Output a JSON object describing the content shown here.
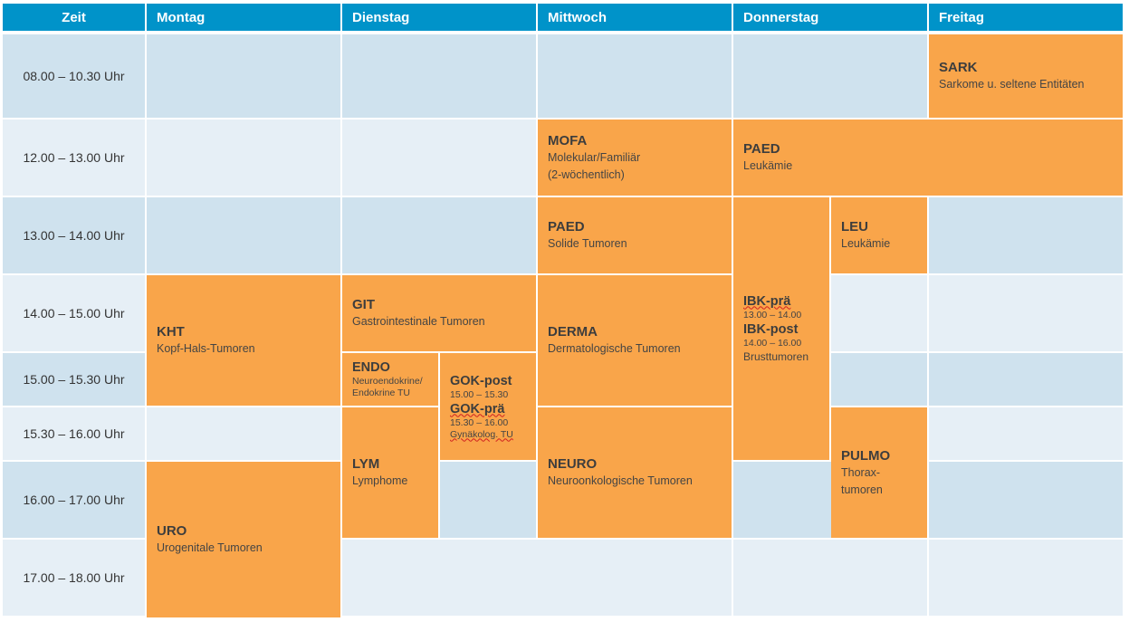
{
  "header": {
    "zeit": "Zeit",
    "days": [
      "Montag",
      "Dienstag",
      "Mittwoch",
      "Donnerstag",
      "Freitag"
    ]
  },
  "times": [
    "08.00 – 10.30 Uhr",
    "12.00 – 13.00 Uhr",
    "13.00 – 14.00 Uhr",
    "14.00 – 15.00 Uhr",
    "15.00 – 15.30 Uhr",
    "15.30 – 16.00 Uhr",
    "16.00 – 17.00 Uhr",
    "17.00 – 18.00 Uhr"
  ],
  "events": {
    "sark": {
      "code": "SARK",
      "desc": "Sarkome u. seltene Entitäten"
    },
    "mofa": {
      "code": "MOFA",
      "desc1": "Molekular/Familiär",
      "desc2": "(2-wöchentlich)"
    },
    "paed_do": {
      "code": "PAED",
      "desc": "Leukämie"
    },
    "paed_mi": {
      "code": "PAED",
      "desc": "Solide Tumoren"
    },
    "leu": {
      "code": "LEU",
      "desc": "Leukämie"
    },
    "ibk": {
      "code1": "IBK-prä",
      "time1": "13.00 – 14.00",
      "code2": "IBK-post",
      "time2": "14.00 – 16.00",
      "desc": "Brusttumoren"
    },
    "kht": {
      "code": "KHT",
      "desc": "Kopf-Hals-Tumoren"
    },
    "git": {
      "code": "GIT",
      "desc": "Gastrointestinale Tumoren"
    },
    "derma": {
      "code": "DERMA",
      "desc": "Dermatologische Tumoren"
    },
    "endo": {
      "code": "ENDO",
      "desc1": "Neuroendokrine/",
      "desc2": "Endokrine TU"
    },
    "gok": {
      "code1": "GOK-post",
      "time1": "15.00 – 15.30",
      "code2": "GOK-prä",
      "time2": "15.30 – 16.00",
      "desc": "Gynäkolog. TU"
    },
    "lym": {
      "code": "LYM",
      "desc": "Lymphome"
    },
    "neuro": {
      "code": "NEURO",
      "desc": "Neuroonkologische Tumoren"
    },
    "pulmo": {
      "code": "PULMO",
      "desc1": "Thorax-",
      "desc2": "tumoren"
    },
    "uro": {
      "code": "URO",
      "desc": "Urogenitale Tumoren"
    }
  },
  "colors": {
    "header": "#0093c9",
    "row_dark": "#cfe2ee",
    "row_light": "#e6eff6",
    "event": "#f9a54a"
  }
}
